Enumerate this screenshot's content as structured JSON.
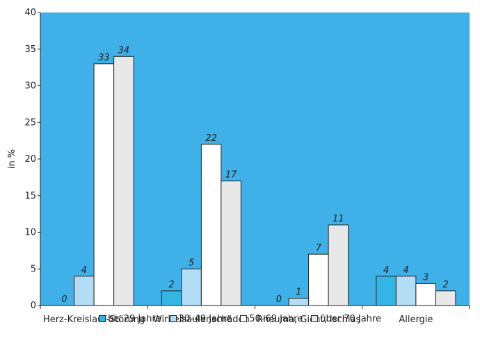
{
  "chart_data": {
    "type": "bar",
    "ylabel": "in %",
    "xlabel": "",
    "ylim": [
      0,
      40
    ],
    "yticks": [
      0,
      5,
      10,
      15,
      20,
      25,
      30,
      35,
      40
    ],
    "grid": false,
    "legend_placement": "bottom",
    "plot_background": "#3fb0e8",
    "categories": [
      "Herz-Kreislauf-Störung",
      "Wirbelsäulenschäden",
      "Rheuma, Gicht, Ischias",
      "Allergie"
    ],
    "series": [
      {
        "name": "bis 29 Jahre",
        "color": "#33b5e5",
        "values": [
          0,
          2,
          0,
          4
        ]
      },
      {
        "name": "30–49 Jahre",
        "color": "#b3dcf5",
        "values": [
          4,
          5,
          1,
          4
        ]
      },
      {
        "name": "50–69 Jahre",
        "color": "#ffffff",
        "values": [
          33,
          22,
          7,
          3
        ]
      },
      {
        "name": "über 70 Jahre",
        "color": "#e8e8e8",
        "values": [
          34,
          17,
          11,
          2
        ]
      }
    ]
  }
}
